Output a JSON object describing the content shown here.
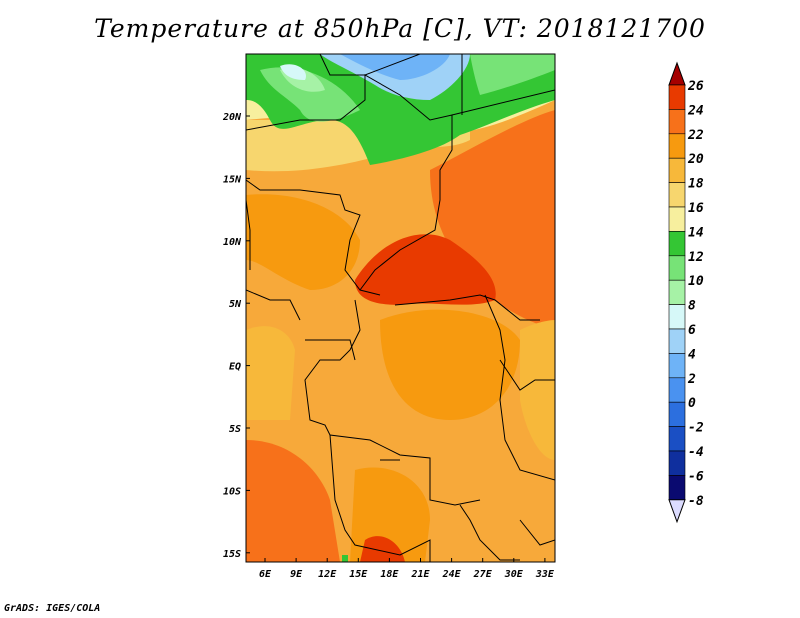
{
  "title": "Temperature at 850hPa [C], VT: 2018121700",
  "credit": "GrADS: IGES/COLA",
  "map": {
    "lat_labels": [
      "20N",
      "15N",
      "10N",
      "5N",
      "EQ",
      "5S",
      "10S",
      "15S"
    ],
    "lon_labels": [
      "6E",
      "9E",
      "12E",
      "15E",
      "18E",
      "21E",
      "24E",
      "27E",
      "30E",
      "33E"
    ]
  },
  "colorbar": {
    "labels": [
      "26",
      "24",
      "22",
      "20",
      "18",
      "16",
      "14",
      "12",
      "10",
      "8",
      "6",
      "4",
      "2",
      "0",
      "-2",
      "-4",
      "-6",
      "-8"
    ],
    "colors": [
      "#a50000",
      "#e83a00",
      "#f7711a",
      "#f79a0f",
      "#f7b83a",
      "#f7d66e",
      "#f7ef9e",
      "#34c634",
      "#77e377",
      "#a6f2a6",
      "#d6f8f8",
      "#9fd2f7",
      "#6eb3f7",
      "#4a92f0",
      "#2c6fdf",
      "#1a4fc4",
      "#0f2f9e",
      "#0a0a70",
      "#dcdcff"
    ]
  }
}
